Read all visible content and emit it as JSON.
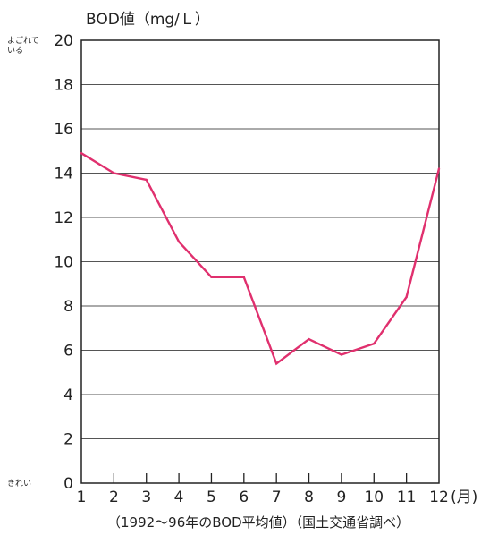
{
  "chart_data": {
    "type": "line",
    "categories": [
      "1",
      "2",
      "3",
      "4",
      "5",
      "6",
      "7",
      "8",
      "9",
      "10",
      "11",
      "12"
    ],
    "series": [
      {
        "values": [
          14.9,
          14.0,
          13.7,
          10.9,
          9.3,
          9.3,
          5.4,
          6.5,
          5.8,
          6.3,
          8.4,
          14.2
        ]
      }
    ],
    "ylim": [
      0,
      20
    ],
    "yticks": [
      "0",
      "2",
      "4",
      "6",
      "8",
      "10",
      "12",
      "14",
      "16",
      "18",
      "20"
    ],
    "ylabel": "BOD値（mg/Ｌ）",
    "x_unit": "(月)",
    "top_annotation": [
      "よごれて",
      "いる"
    ],
    "bottom_annotation": "きれい",
    "source": "（1992〜96年のBOD平均値）（国土交通省調べ）",
    "grid": true,
    "line_color": "#e0306e",
    "grid_color": "#555555",
    "axis_color": "#222222"
  }
}
